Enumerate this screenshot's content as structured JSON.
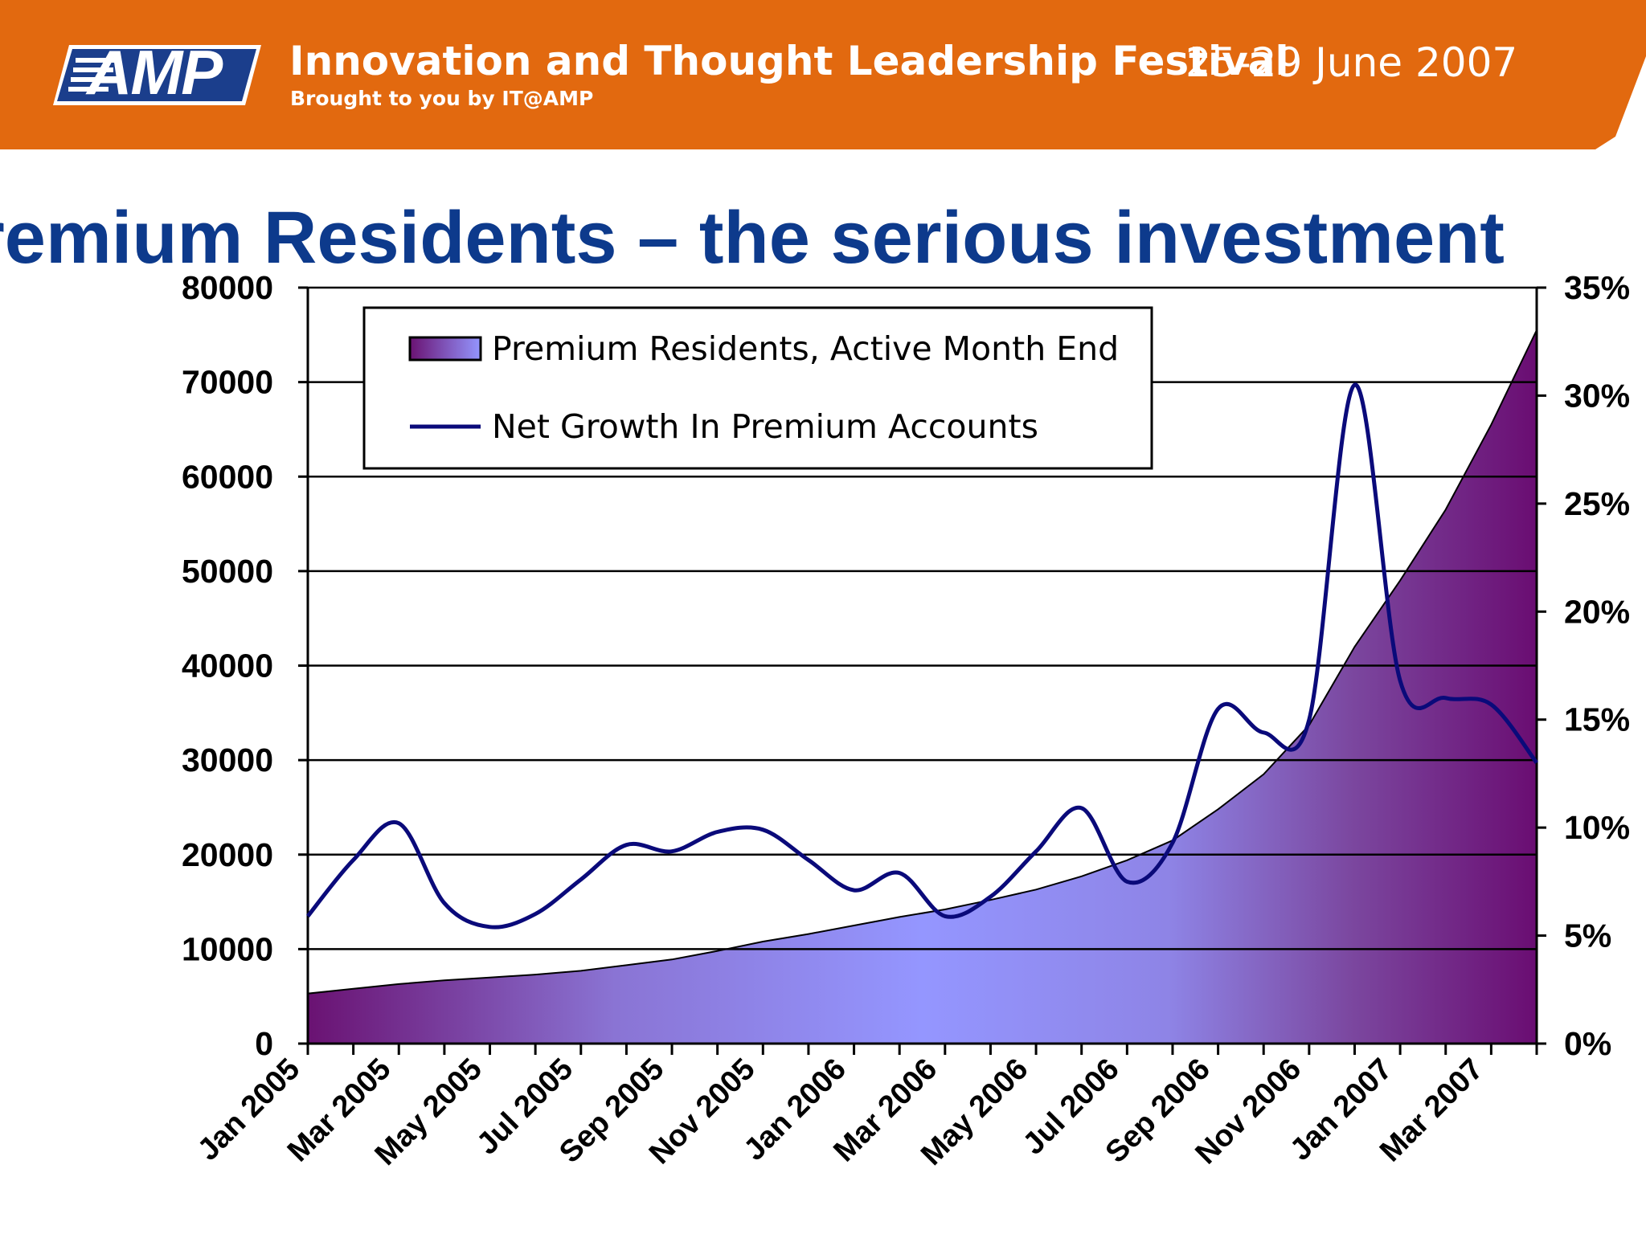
{
  "header": {
    "logo_text": "AMP",
    "event_title": "Innovation and Thought Leadership Festival",
    "event_subtitle": "Brought to you by IT@AMP",
    "event_dates": "25-29 June 2007",
    "banner_color": "#e2690f"
  },
  "slide": {
    "title": "remium Residents – the serious investment",
    "title_color": "#0d3a8c"
  },
  "chart_data": {
    "type": "area",
    "title": "",
    "grid": true,
    "legend_position": "top-left",
    "x": [
      "Jan 2005",
      "Feb 2005",
      "Mar 2005",
      "Apr 2005",
      "May 2005",
      "Jun 2005",
      "Jul 2005",
      "Aug 2005",
      "Sep 2005",
      "Oct 2005",
      "Nov 2005",
      "Dec 2005",
      "Jan 2006",
      "Feb 2006",
      "Mar 2006",
      "Apr 2006",
      "May 2006",
      "Jun 2006",
      "Jul 2006",
      "Aug 2006",
      "Sep 2006",
      "Oct 2006",
      "Nov 2006",
      "Dec 2006",
      "Jan 2007",
      "Feb 2007",
      "Mar 2007",
      "Apr 2007"
    ],
    "x_tick_labels": [
      "Jan 2005",
      "Mar 2005",
      "May 2005",
      "Jul 2005",
      "Sep 2005",
      "Nov 2005",
      "Jan 2006",
      "Mar 2006",
      "May 2006",
      "Jul 2006",
      "Sep 2006",
      "Nov 2006",
      "Jan 2007",
      "Mar 2007"
    ],
    "y_left": {
      "ylim": [
        0,
        80000
      ],
      "ticks": [
        "0",
        "10000",
        "20000",
        "30000",
        "40000",
        "50000",
        "60000",
        "70000",
        "80000"
      ]
    },
    "y_right": {
      "ylim": [
        0,
        35
      ],
      "ticks": [
        "0%",
        "5%",
        "10%",
        "15%",
        "20%",
        "25%",
        "30%",
        "35%"
      ]
    },
    "series": [
      {
        "name": "Premium Residents, Active Month End",
        "kind": "area",
        "axis": "left",
        "values": [
          5300,
          5800,
          6300,
          6700,
          7000,
          7300,
          7700,
          8300,
          8900,
          9800,
          10800,
          11600,
          12500,
          13400,
          14200,
          15200,
          16300,
          17700,
          19400,
          21500,
          24800,
          28500,
          33700,
          42000,
          49000,
          56500,
          65500,
          75500
        ]
      },
      {
        "name": "Net Growth In Premium Accounts",
        "kind": "line",
        "axis": "right",
        "unit": "%",
        "values": [
          5.9,
          8.5,
          10.2,
          6.5,
          5.4,
          6.0,
          7.6,
          9.2,
          8.9,
          9.8,
          9.9,
          8.5,
          7.1,
          7.9,
          5.9,
          6.8,
          8.9,
          10.9,
          7.5,
          9.3,
          15.5,
          14.4,
          15.0,
          30.5,
          16.8,
          16.0,
          15.7,
          13.0
        ]
      }
    ]
  }
}
